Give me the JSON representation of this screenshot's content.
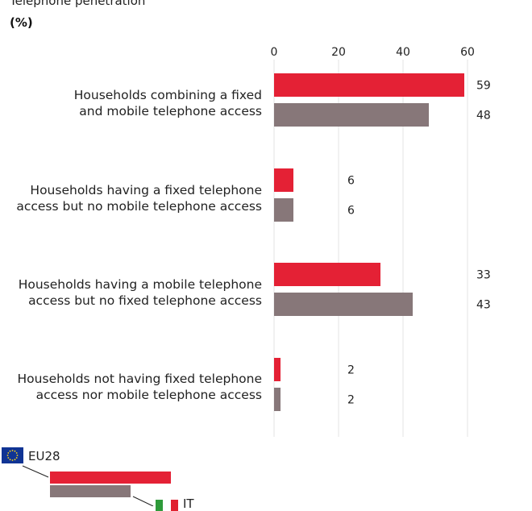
{
  "title": "Telephone penetration",
  "unit": "(%)",
  "colors": {
    "it": "#e42135",
    "eu": "#877779",
    "grid": "#e3e3e3",
    "flag_eu": "#103494",
    "flag_star": "#ffd617",
    "flag_it_green": "#2e9a3a",
    "flag_it_white": "#ffffff",
    "flag_it_red": "#e0212f"
  },
  "legend": {
    "eu_label": "EU28",
    "it_label": "IT"
  },
  "chart_data": {
    "type": "bar",
    "orientation": "horizontal",
    "title": "Telephone penetration",
    "ylabel": "(%)",
    "categories": [
      [
        "Households combining a fixed",
        "and mobile telephone access"
      ],
      [
        "Households having a fixed telephone",
        "access but no mobile telephone access"
      ],
      [
        "Households having a mobile telephone",
        "access but no fixed telephone access"
      ],
      [
        "Households not having fixed telephone",
        "access nor mobile telephone access"
      ]
    ],
    "series": [
      {
        "name": "IT",
        "values": [
          59,
          6,
          33,
          2
        ]
      },
      {
        "name": "EU28",
        "values": [
          48,
          6,
          43,
          2
        ]
      }
    ],
    "xlim": [
      0,
      60
    ],
    "ticks": [
      0,
      20,
      40,
      60
    ],
    "grid": true,
    "legend_position": "bottom-left"
  }
}
